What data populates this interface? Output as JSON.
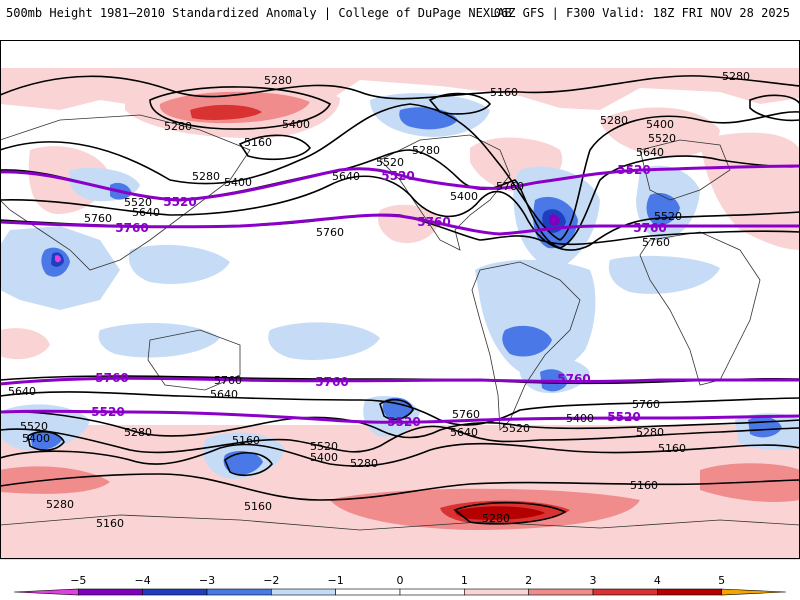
{
  "header": {
    "title": "500mb Height 1981–2010 Standardized Anomaly | College of DuPage NEXLAB",
    "run": "06Z GFS | F300 Valid: 18Z FRI NOV 28 2025"
  },
  "colors": {
    "neg5": "#e040e0",
    "neg4": "#8000c0",
    "neg3": "#1f3fc0",
    "neg2": "#4a78e6",
    "neg1": "#c6dcf6",
    "zero": "#ffffff",
    "pos1": "#fad4d4",
    "pos2": "#f08c8c",
    "pos3": "#d83232",
    "pos4": "#b40000",
    "pos5": "#f5a500",
    "contour": "#000000",
    "highlight": "#8a00c8"
  },
  "contour_labels": {
    "c5280": "5280",
    "c5160": "5160",
    "c5400": "5400",
    "c5520": "5520",
    "c5640": "5640",
    "c5760": "5760"
  },
  "colorbar": {
    "ticks": [
      "−5",
      "−4",
      "−3",
      "−2",
      "−1",
      "0",
      "1",
      "2",
      "3",
      "4",
      "5"
    ]
  }
}
